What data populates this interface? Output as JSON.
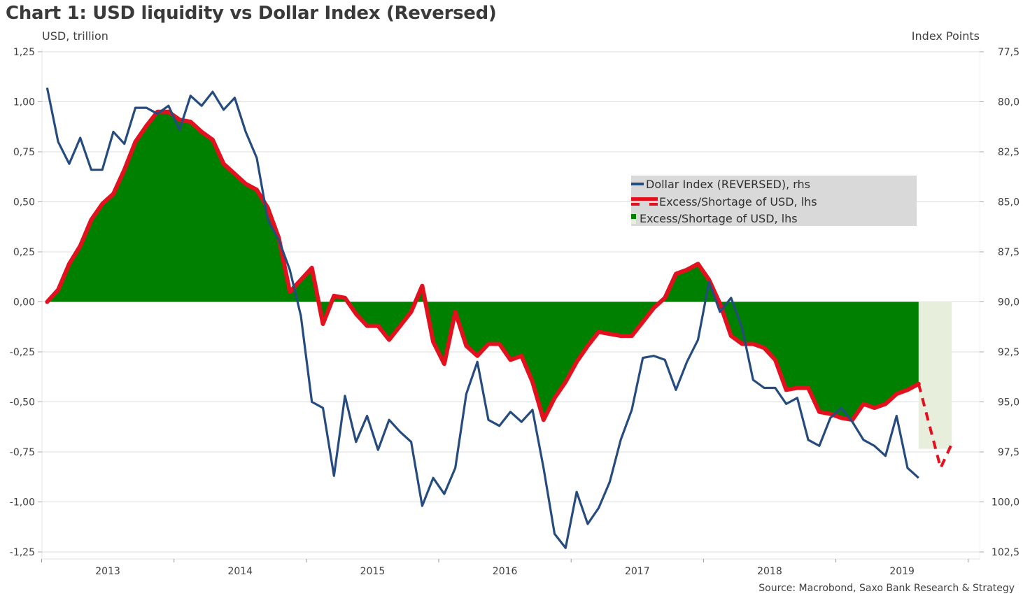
{
  "chart_data": {
    "type": "line",
    "title": "Chart 1: USD liquidity vs Dollar Index (Reversed)",
    "ylabel_left": "USD, trillion",
    "ylabel_right": "Index Points",
    "source": "Source: Macrobond, Saxo Bank Research & Strategy",
    "x_unit": "months since Jan 2013",
    "xlim": [
      -0.5,
      84.5
    ],
    "ylim_left": [
      -1.25,
      1.25
    ],
    "ylim_right": [
      102.5,
      77.5
    ],
    "right_axis_reversed": true,
    "grid": true,
    "y_ticks_left": [
      "1,25",
      "1,00",
      "0,75",
      "0,50",
      "0,25",
      "0,00",
      "-0,25",
      "-0,50",
      "-0,75",
      "-1,00",
      "-1,25"
    ],
    "y_tick_values_left": [
      1.25,
      1.0,
      0.75,
      0.5,
      0.25,
      0.0,
      -0.25,
      -0.5,
      -0.75,
      -1.0,
      -1.25
    ],
    "y_ticks_right": [
      "77,5",
      "80,0",
      "82,5",
      "85,0",
      "87,5",
      "90,0",
      "92,5",
      "95,0",
      "97,5",
      "100,0",
      "102,5"
    ],
    "x_ticks": [
      "2013",
      "2014",
      "2015",
      "2016",
      "2017",
      "2018",
      "2019"
    ],
    "legend": {
      "position": "center-right",
      "entries": [
        "Dollar Index (REVERSED), rhs",
        "Excess/Shortage of USD, lhs",
        "Excess/Shortage of USD, lhs"
      ]
    },
    "series": [
      {
        "name": "Dollar Index (REVERSED), rhs",
        "axis": "right",
        "color": "#264b7e",
        "x_start": 0,
        "x_step": 1,
        "values": [
          79.3,
          82.0,
          83.1,
          81.8,
          83.4,
          83.4,
          81.5,
          82.1,
          80.3,
          80.3,
          80.6,
          80.2,
          81.4,
          79.7,
          80.2,
          79.5,
          80.4,
          79.8,
          81.5,
          82.8,
          85.9,
          86.9,
          88.4,
          90.7,
          95.0,
          95.3,
          98.7,
          94.7,
          97.0,
          95.7,
          97.4,
          95.9,
          96.5,
          97.0,
          100.2,
          98.8,
          99.6,
          98.3,
          94.6,
          93.0,
          95.9,
          96.2,
          95.5,
          96.0,
          95.4,
          98.3,
          101.6,
          102.3,
          99.5,
          101.1,
          100.3,
          99.0,
          96.9,
          95.4,
          92.8,
          92.7,
          92.9,
          94.4,
          93.0,
          91.9,
          89.0,
          90.5,
          89.8,
          91.3,
          93.9,
          94.3,
          94.3,
          95.1,
          94.8,
          96.9,
          97.2,
          95.8,
          95.3,
          96.0,
          96.9,
          97.2,
          97.7,
          95.7,
          98.3,
          98.8
        ]
      },
      {
        "name": "Excess/Shortage of USD, lhs",
        "axis": "left",
        "color": "#e3101e",
        "fill_color": "#008000",
        "x_start": 0,
        "x_step": 1,
        "values": [
          0.0,
          0.06,
          0.19,
          0.28,
          0.41,
          0.49,
          0.54,
          0.66,
          0.8,
          0.88,
          0.95,
          0.95,
          0.91,
          0.9,
          0.85,
          0.81,
          0.69,
          0.64,
          0.59,
          0.56,
          0.47,
          0.32,
          0.05,
          0.11,
          0.17,
          -0.11,
          0.03,
          0.02,
          -0.06,
          -0.12,
          -0.12,
          -0.19,
          -0.12,
          -0.05,
          0.08,
          -0.2,
          -0.31,
          -0.05,
          -0.22,
          -0.27,
          -0.21,
          -0.21,
          -0.29,
          -0.27,
          -0.4,
          -0.59,
          -0.48,
          -0.4,
          -0.3,
          -0.22,
          -0.15,
          -0.16,
          -0.17,
          -0.17,
          -0.1,
          -0.03,
          0.02,
          0.14,
          0.16,
          0.19,
          0.11,
          -0.01,
          -0.17,
          -0.21,
          -0.21,
          -0.23,
          -0.29,
          -0.44,
          -0.43,
          -0.43,
          -0.55,
          -0.56,
          -0.58,
          -0.59,
          -0.51,
          -0.53,
          -0.51,
          -0.46,
          -0.44,
          -0.41
        ]
      },
      {
        "name": "Excess/Shortage of USD, lhs (forecast)",
        "axis": "left",
        "color": "#e3101e",
        "fill_color": "#e8eedc",
        "dashed": true,
        "x": [
          79,
          81,
          82
        ],
        "values": [
          -0.41,
          -0.83,
          -0.71
        ]
      }
    ]
  }
}
